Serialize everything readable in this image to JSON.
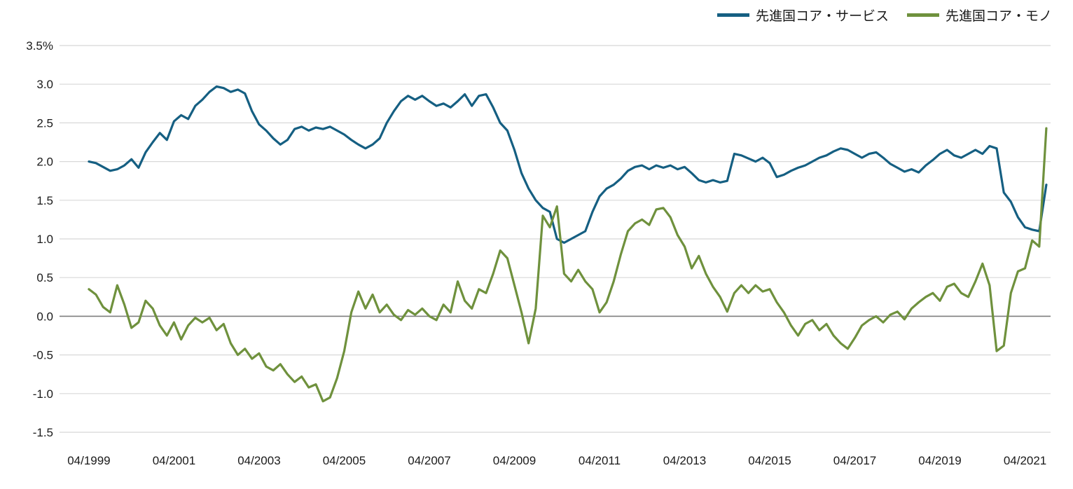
{
  "legend": [
    {
      "label": "先進国コア・サービス",
      "color": "#155f82"
    },
    {
      "label": "先進国コア・モノ",
      "color": "#6f913d"
    }
  ],
  "colors": {
    "services_line": "#155f82",
    "goods_line": "#6f913d",
    "gridline": "#d8d8d8",
    "zero_line": "#7d7d7d",
    "axis_text": "#1a1a1a"
  },
  "chart_data": {
    "type": "line",
    "title": "",
    "xlabel": "",
    "ylabel": "",
    "ylim": [
      -1.5,
      3.5
    ],
    "xlim": [
      1998.56,
      2021.85
    ],
    "grid": true,
    "legend_position": "top-right",
    "y_ticks": [
      3.5,
      3.0,
      2.5,
      2.0,
      1.5,
      1.0,
      0.5,
      0.0,
      -0.5,
      -1.0,
      -1.5
    ],
    "y_tick_labels": [
      "3.5%",
      "3.0",
      "2.5",
      "2.0",
      "1.5",
      "1.0",
      "0.5",
      "0.0",
      "-0.5",
      "-1.0",
      "-1.5"
    ],
    "x_tick_positions": [
      1999.25,
      2001.25,
      2003.25,
      2005.25,
      2007.25,
      2009.25,
      2011.25,
      2013.25,
      2015.25,
      2017.25,
      2019.25,
      2021.25
    ],
    "x_tick_labels": [
      "04/1999",
      "04/2001",
      "04/2003",
      "04/2005",
      "04/2007",
      "04/2009",
      "04/2011",
      "04/2013",
      "04/2015",
      "04/2017",
      "04/2019",
      "04/2021"
    ],
    "x_start": 1999.25,
    "x_step": 0.1666667,
    "x_end": 2021.75,
    "n_points": 136,
    "unit": "%",
    "series": [
      {
        "name": "先進国コア・サービス",
        "color": "#155f82",
        "values": [
          2.0,
          1.98,
          1.93,
          1.88,
          1.9,
          1.95,
          2.03,
          1.92,
          2.12,
          2.25,
          2.37,
          2.28,
          2.52,
          2.6,
          2.55,
          2.72,
          2.8,
          2.9,
          2.97,
          2.95,
          2.9,
          2.93,
          2.88,
          2.65,
          2.48,
          2.4,
          2.3,
          2.22,
          2.28,
          2.42,
          2.45,
          2.4,
          2.44,
          2.42,
          2.45,
          2.4,
          2.35,
          2.28,
          2.22,
          2.17,
          2.22,
          2.3,
          2.5,
          2.65,
          2.78,
          2.85,
          2.8,
          2.85,
          2.78,
          2.72,
          2.75,
          2.7,
          2.78,
          2.87,
          2.72,
          2.85,
          2.87,
          2.7,
          2.5,
          2.4,
          2.15,
          1.85,
          1.65,
          1.5,
          1.4,
          1.35,
          1.0,
          0.95,
          1.0,
          1.05,
          1.1,
          1.35,
          1.55,
          1.65,
          1.7,
          1.78,
          1.88,
          1.93,
          1.95,
          1.9,
          1.95,
          1.92,
          1.95,
          1.9,
          1.93,
          1.85,
          1.76,
          1.73,
          1.76,
          1.73,
          1.75,
          2.1,
          2.08,
          2.04,
          2.0,
          2.05,
          1.98,
          1.8,
          1.83,
          1.88,
          1.92,
          1.95,
          2.0,
          2.05,
          2.08,
          2.13,
          2.17,
          2.15,
          2.1,
          2.05,
          2.1,
          2.12,
          2.05,
          1.97,
          1.92,
          1.87,
          1.9,
          1.86,
          1.95,
          2.02,
          2.1,
          2.15,
          2.08,
          2.05,
          2.1,
          2.15,
          2.1,
          2.2,
          2.17,
          1.6,
          1.48,
          1.28,
          1.15,
          1.12,
          1.1,
          1.7
        ]
      },
      {
        "name": "先進国コア・モノ",
        "color": "#6f913d",
        "values": [
          0.35,
          0.28,
          0.12,
          0.05,
          0.4,
          0.15,
          -0.15,
          -0.08,
          0.2,
          0.1,
          -0.12,
          -0.25,
          -0.08,
          -0.3,
          -0.12,
          -0.02,
          -0.08,
          -0.02,
          -0.18,
          -0.1,
          -0.35,
          -0.5,
          -0.42,
          -0.55,
          -0.48,
          -0.65,
          -0.7,
          -0.62,
          -0.75,
          -0.85,
          -0.78,
          -0.92,
          -0.88,
          -1.1,
          -1.05,
          -0.8,
          -0.45,
          0.05,
          0.32,
          0.1,
          0.28,
          0.05,
          0.15,
          0.02,
          -0.05,
          0.08,
          0.02,
          0.1,
          0.0,
          -0.05,
          0.15,
          0.05,
          0.45,
          0.2,
          0.1,
          0.35,
          0.3,
          0.55,
          0.85,
          0.75,
          0.4,
          0.05,
          -0.35,
          0.1,
          1.3,
          1.15,
          1.42,
          0.55,
          0.45,
          0.6,
          0.45,
          0.35,
          0.05,
          0.18,
          0.45,
          0.8,
          1.1,
          1.2,
          1.25,
          1.18,
          1.38,
          1.4,
          1.28,
          1.05,
          0.9,
          0.62,
          0.78,
          0.55,
          0.38,
          0.25,
          0.06,
          0.3,
          0.4,
          0.3,
          0.4,
          0.32,
          0.35,
          0.18,
          0.05,
          -0.12,
          -0.25,
          -0.1,
          -0.05,
          -0.18,
          -0.1,
          -0.25,
          -0.35,
          -0.42,
          -0.28,
          -0.12,
          -0.05,
          0.0,
          -0.08,
          0.02,
          0.06,
          -0.04,
          0.1,
          0.18,
          0.25,
          0.3,
          0.2,
          0.38,
          0.42,
          0.3,
          0.25,
          0.45,
          0.68,
          0.4,
          -0.45,
          -0.38,
          0.3,
          0.58,
          0.62,
          0.98,
          0.9,
          2.43
        ]
      }
    ]
  }
}
